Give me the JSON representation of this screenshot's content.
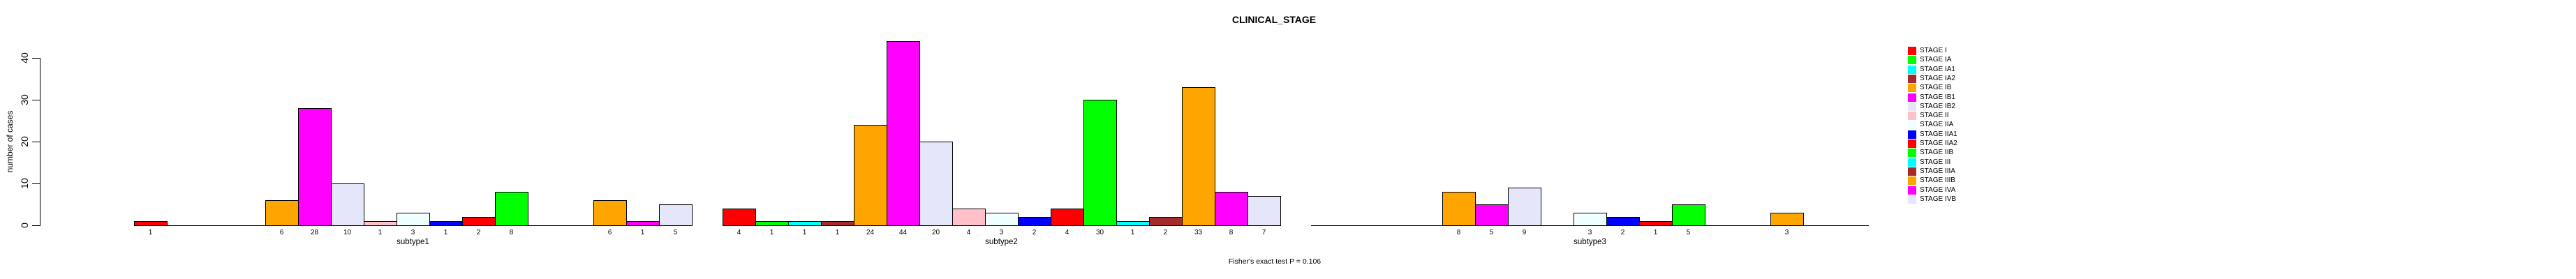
{
  "chart_data": {
    "type": "bar",
    "title": "CLINICAL_STAGE",
    "ylabel": "number of cases",
    "footnote": "Fisher's exact test P = 0.106",
    "y_ticks": [
      0,
      10,
      20,
      30,
      40
    ],
    "ylim": [
      0,
      40
    ],
    "grid": false,
    "legend_position": "right",
    "background_color": "#ffffff",
    "axis_color": "#000000",
    "bar_border_color": "#000000",
    "stages": [
      "STAGE I",
      "STAGE IA",
      "STAGE IA1",
      "STAGE IA2",
      "STAGE IB",
      "STAGE IB1",
      "STAGE IB2",
      "STAGE II",
      "STAGE IIA",
      "STAGE IIA1",
      "STAGE IIA2",
      "STAGE IIB",
      "STAGE III",
      "STAGE IIIA",
      "STAGE IIIB",
      "STAGE IVA",
      "STAGE IVB"
    ],
    "stage_colors": [
      "#FF0000",
      "#00FF00",
      "#00FFFF",
      "#A52A2A",
      "#FFA500",
      "#FF00FF",
      "#E6E6FA",
      "#FFC0CB",
      "#F0FFFF",
      "#0000FF",
      "#FF0000",
      "#00FF00",
      "#00FFFF",
      "#A52A2A",
      "#FFA500",
      "#FF00FF",
      "#E6E6FA"
    ],
    "categories": [
      "subtype1",
      "subtype2",
      "subtype3"
    ],
    "series": [
      {
        "name": "subtype1",
        "values": [
          1,
          0,
          0,
          0,
          6,
          28,
          10,
          1,
          3,
          1,
          2,
          8,
          0,
          0,
          6,
          1,
          5
        ]
      },
      {
        "name": "subtype2",
        "values": [
          4,
          1,
          1,
          1,
          24,
          44,
          20,
          4,
          3,
          2,
          4,
          30,
          1,
          2,
          33,
          8,
          7
        ]
      },
      {
        "name": "subtype3",
        "values": [
          0,
          0,
          0,
          0,
          8,
          5,
          9,
          0,
          3,
          2,
          1,
          5,
          0,
          0,
          3,
          0,
          0
        ]
      }
    ]
  }
}
